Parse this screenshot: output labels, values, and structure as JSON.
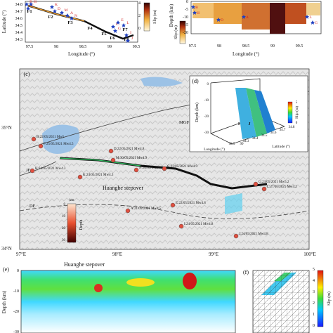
{
  "panel_a": {
    "y_label": "Latitude (°)",
    "x_label": "Longitude (°)",
    "yticks": [
      "34.8",
      "34.7",
      "34.6",
      "34.5",
      "34.4",
      "34.3"
    ],
    "xticks": [
      "97.5",
      "98",
      "98.5",
      "99",
      "99.5"
    ],
    "faults": [
      "F1",
      "F2",
      "F3",
      "F4",
      "F5",
      "F6",
      "F7",
      "F8"
    ],
    "events": [
      "B",
      "F",
      "H",
      "K",
      "D",
      "M",
      "A",
      "N",
      "C",
      "G",
      "E",
      "L",
      "I",
      "J"
    ],
    "colorbar_label": "Slip (m)",
    "colorbar_ticks": [
      "4",
      "2",
      "0"
    ]
  },
  "panel_b": {
    "y_label": "Depth (km)",
    "x_label": "Longitude (°)",
    "yticks": [
      "0",
      "-5",
      "-10",
      "-15",
      "-20"
    ],
    "xticks": [
      "97.5",
      "98",
      "98.5",
      "99",
      "99.5"
    ],
    "events": [
      "B",
      "H",
      "D",
      "A",
      "G",
      "L"
    ],
    "colorbar_label": "Slip (m)"
  },
  "panel_c": {
    "label": "(c)",
    "lat_labels": [
      "35°N",
      "34°N"
    ],
    "lon_labels": [
      "97°E",
      "98°E",
      "99°E",
      "100°E"
    ],
    "faults": [
      "MGF",
      "JF",
      "DF"
    ],
    "stepover": "Huanghe stepover",
    "events": [
      "B:22/05/2021 Mw5",
      "F:25/05/2021 Mw4.5",
      "H:24/05/2021 Mw4.3",
      "D:22/05/2021 Mw4.8",
      "M:30/05/2021 Mw4.9",
      "K:24/05/2021 Mw4.3",
      "N:30/05/2021 Mw4.9",
      "C:22/05/2021 Mw4.9",
      "A:21/05/2021 Mw4.5",
      "G:23/05/2021 Mw5.2",
      "L:27/05/2021 Mw4.2",
      "E:22/05/2021 Mw4.8",
      "I:24/05/2021 Mw4.8",
      "J:24/05/2021 Mw3.8"
    ],
    "colorbar_unit": "km",
    "colorbar_label": "Depth",
    "colorbar_ticks": [
      "0",
      "10",
      "20",
      "30"
    ]
  },
  "panel_d": {
    "label": "(d)",
    "z_label": "Depth (km)",
    "zticks": [
      "0",
      "-10",
      "-20",
      "-30"
    ],
    "x_label": "Longitude (°)",
    "xticks": [
      "98.5",
      "99"
    ],
    "y_label": "Latitude (°)",
    "yticks": [
      "34.3",
      "34.4",
      "34.5",
      "34.6",
      "34.7",
      "34.8"
    ],
    "events": [
      "I",
      "J"
    ],
    "colorbar_label": "Slip (m)",
    "colorbar_ticks": [
      "0",
      "5"
    ]
  },
  "panel_e": {
    "label": "(e)",
    "stepover": "Huanghe stepover",
    "y_label": "Depth (km)",
    "yticks": [
      "0",
      "-10",
      "-20",
      "-30"
    ]
  },
  "panel_f": {
    "label": "(f)",
    "colorbar_label": "Slip (m)",
    "colorbar_ticks": [
      "0",
      "1",
      "2",
      "3",
      "4",
      "5"
    ]
  }
}
